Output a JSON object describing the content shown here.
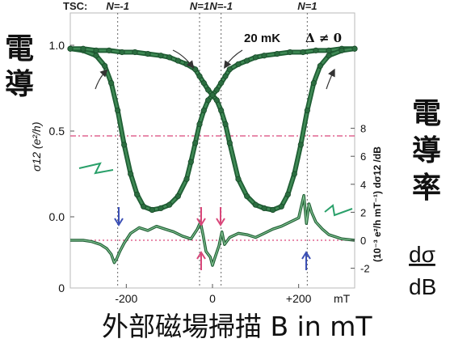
{
  "chart_data": {
    "type": "line",
    "title_line": "TSC:",
    "tsc_markers": [
      {
        "x": -220,
        "label": "N=-1"
      },
      {
        "x": -30,
        "label": "N=1"
      },
      {
        "x": 20,
        "label": "N=-1"
      },
      {
        "x": 220,
        "label": "N=1"
      }
    ],
    "annotation_temp": "20 mK",
    "annotation_gap": "Δ ≠ 0",
    "left_label_cjk": [
      "電",
      "導"
    ],
    "right_label_cjk": [
      "電",
      "導",
      "率"
    ],
    "right_label_frac_top": "dσ",
    "right_label_frac_bottom": "dB",
    "bottom_label": "外部磁場掃描 B in mT",
    "ylabel_left": "σ12 (e²/h)",
    "ylabel_right": "(10⁻³ e²/h mT⁻¹) dσ12 /dB",
    "x_ticks": [
      "-200",
      "0",
      "+200",
      "mT"
    ],
    "y_ticks_left": [
      "1.0",
      "0.5",
      "0.0",
      "0"
    ],
    "y_ticks_right": [
      "8",
      "6",
      "4",
      "2",
      "0",
      "-2"
    ],
    "xlim": [
      -330,
      330
    ],
    "ylim_left": [
      0,
      1.0
    ],
    "ylim_right": [
      -2.5,
      12
    ],
    "reference_lines": {
      "sigma_half": 0.5,
      "deriv_zero": 0
    },
    "series": [
      {
        "x": [
          -330,
          -300,
          -270,
          -250,
          -235,
          -220,
          -205,
          -190,
          -175,
          -160,
          -140,
          -120,
          -100,
          -80,
          -60,
          -50,
          -40,
          -30,
          -20,
          -10,
          0,
          10,
          20,
          30,
          40,
          60,
          80,
          100,
          120,
          150,
          180,
          210,
          240,
          270,
          300,
          330
        ],
        "y": [
          0.98,
          0.97,
          0.94,
          0.88,
          0.78,
          0.62,
          0.42,
          0.25,
          0.13,
          0.06,
          0.04,
          0.05,
          0.07,
          0.12,
          0.22,
          0.32,
          0.43,
          0.54,
          0.62,
          0.68,
          0.71,
          0.74,
          0.78,
          0.82,
          0.86,
          0.89,
          0.91,
          0.93,
          0.94,
          0.95,
          0.96,
          0.96,
          0.97,
          0.97,
          0.98,
          0.98
        ]
      },
      {
        "x": [
          -330,
          -300,
          -270,
          -240,
          -210,
          -180,
          -150,
          -120,
          -100,
          -80,
          -60,
          -40,
          -30,
          -20,
          -10,
          0,
          10,
          20,
          30,
          40,
          60,
          80,
          100,
          120,
          140,
          160,
          175,
          190,
          205,
          220,
          235,
          250,
          270,
          300,
          330
        ],
        "y": [
          0.98,
          0.98,
          0.97,
          0.97,
          0.96,
          0.96,
          0.95,
          0.94,
          0.93,
          0.91,
          0.89,
          0.86,
          0.82,
          0.78,
          0.74,
          0.71,
          0.68,
          0.62,
          0.54,
          0.43,
          0.22,
          0.12,
          0.07,
          0.05,
          0.04,
          0.06,
          0.13,
          0.25,
          0.42,
          0.62,
          0.78,
          0.88,
          0.94,
          0.97,
          0.98
        ]
      },
      {
        "x": [
          -330,
          -300,
          -280,
          -260,
          -245,
          -235,
          -228,
          -222,
          -215,
          -205,
          -190,
          -170,
          -150,
          -130,
          -110,
          -90,
          -70,
          -50,
          -35,
          -28,
          -22,
          -15,
          -5,
          0,
          5,
          15,
          22,
          28,
          40,
          60,
          80,
          100,
          120,
          140,
          160,
          180,
          200,
          212,
          218,
          224,
          230,
          240,
          255,
          270,
          300,
          330
        ],
        "y": [
          0.0,
          0.0,
          -0.1,
          -0.3,
          -0.6,
          -1.0,
          -1.6,
          -1.3,
          -0.8,
          -0.2,
          0.5,
          0.9,
          0.7,
          1.0,
          0.8,
          0.6,
          0.3,
          0.1,
          0.8,
          1.3,
          0.4,
          -0.8,
          -1.2,
          -1.8,
          -1.3,
          -0.4,
          0.6,
          -0.3,
          0.2,
          0.5,
          0.4,
          0.2,
          0.5,
          0.8,
          1.0,
          1.3,
          1.6,
          3.2,
          1.2,
          2.6,
          2.0,
          1.3,
          0.8,
          0.4,
          0.1,
          0.0
        ]
      }
    ]
  }
}
